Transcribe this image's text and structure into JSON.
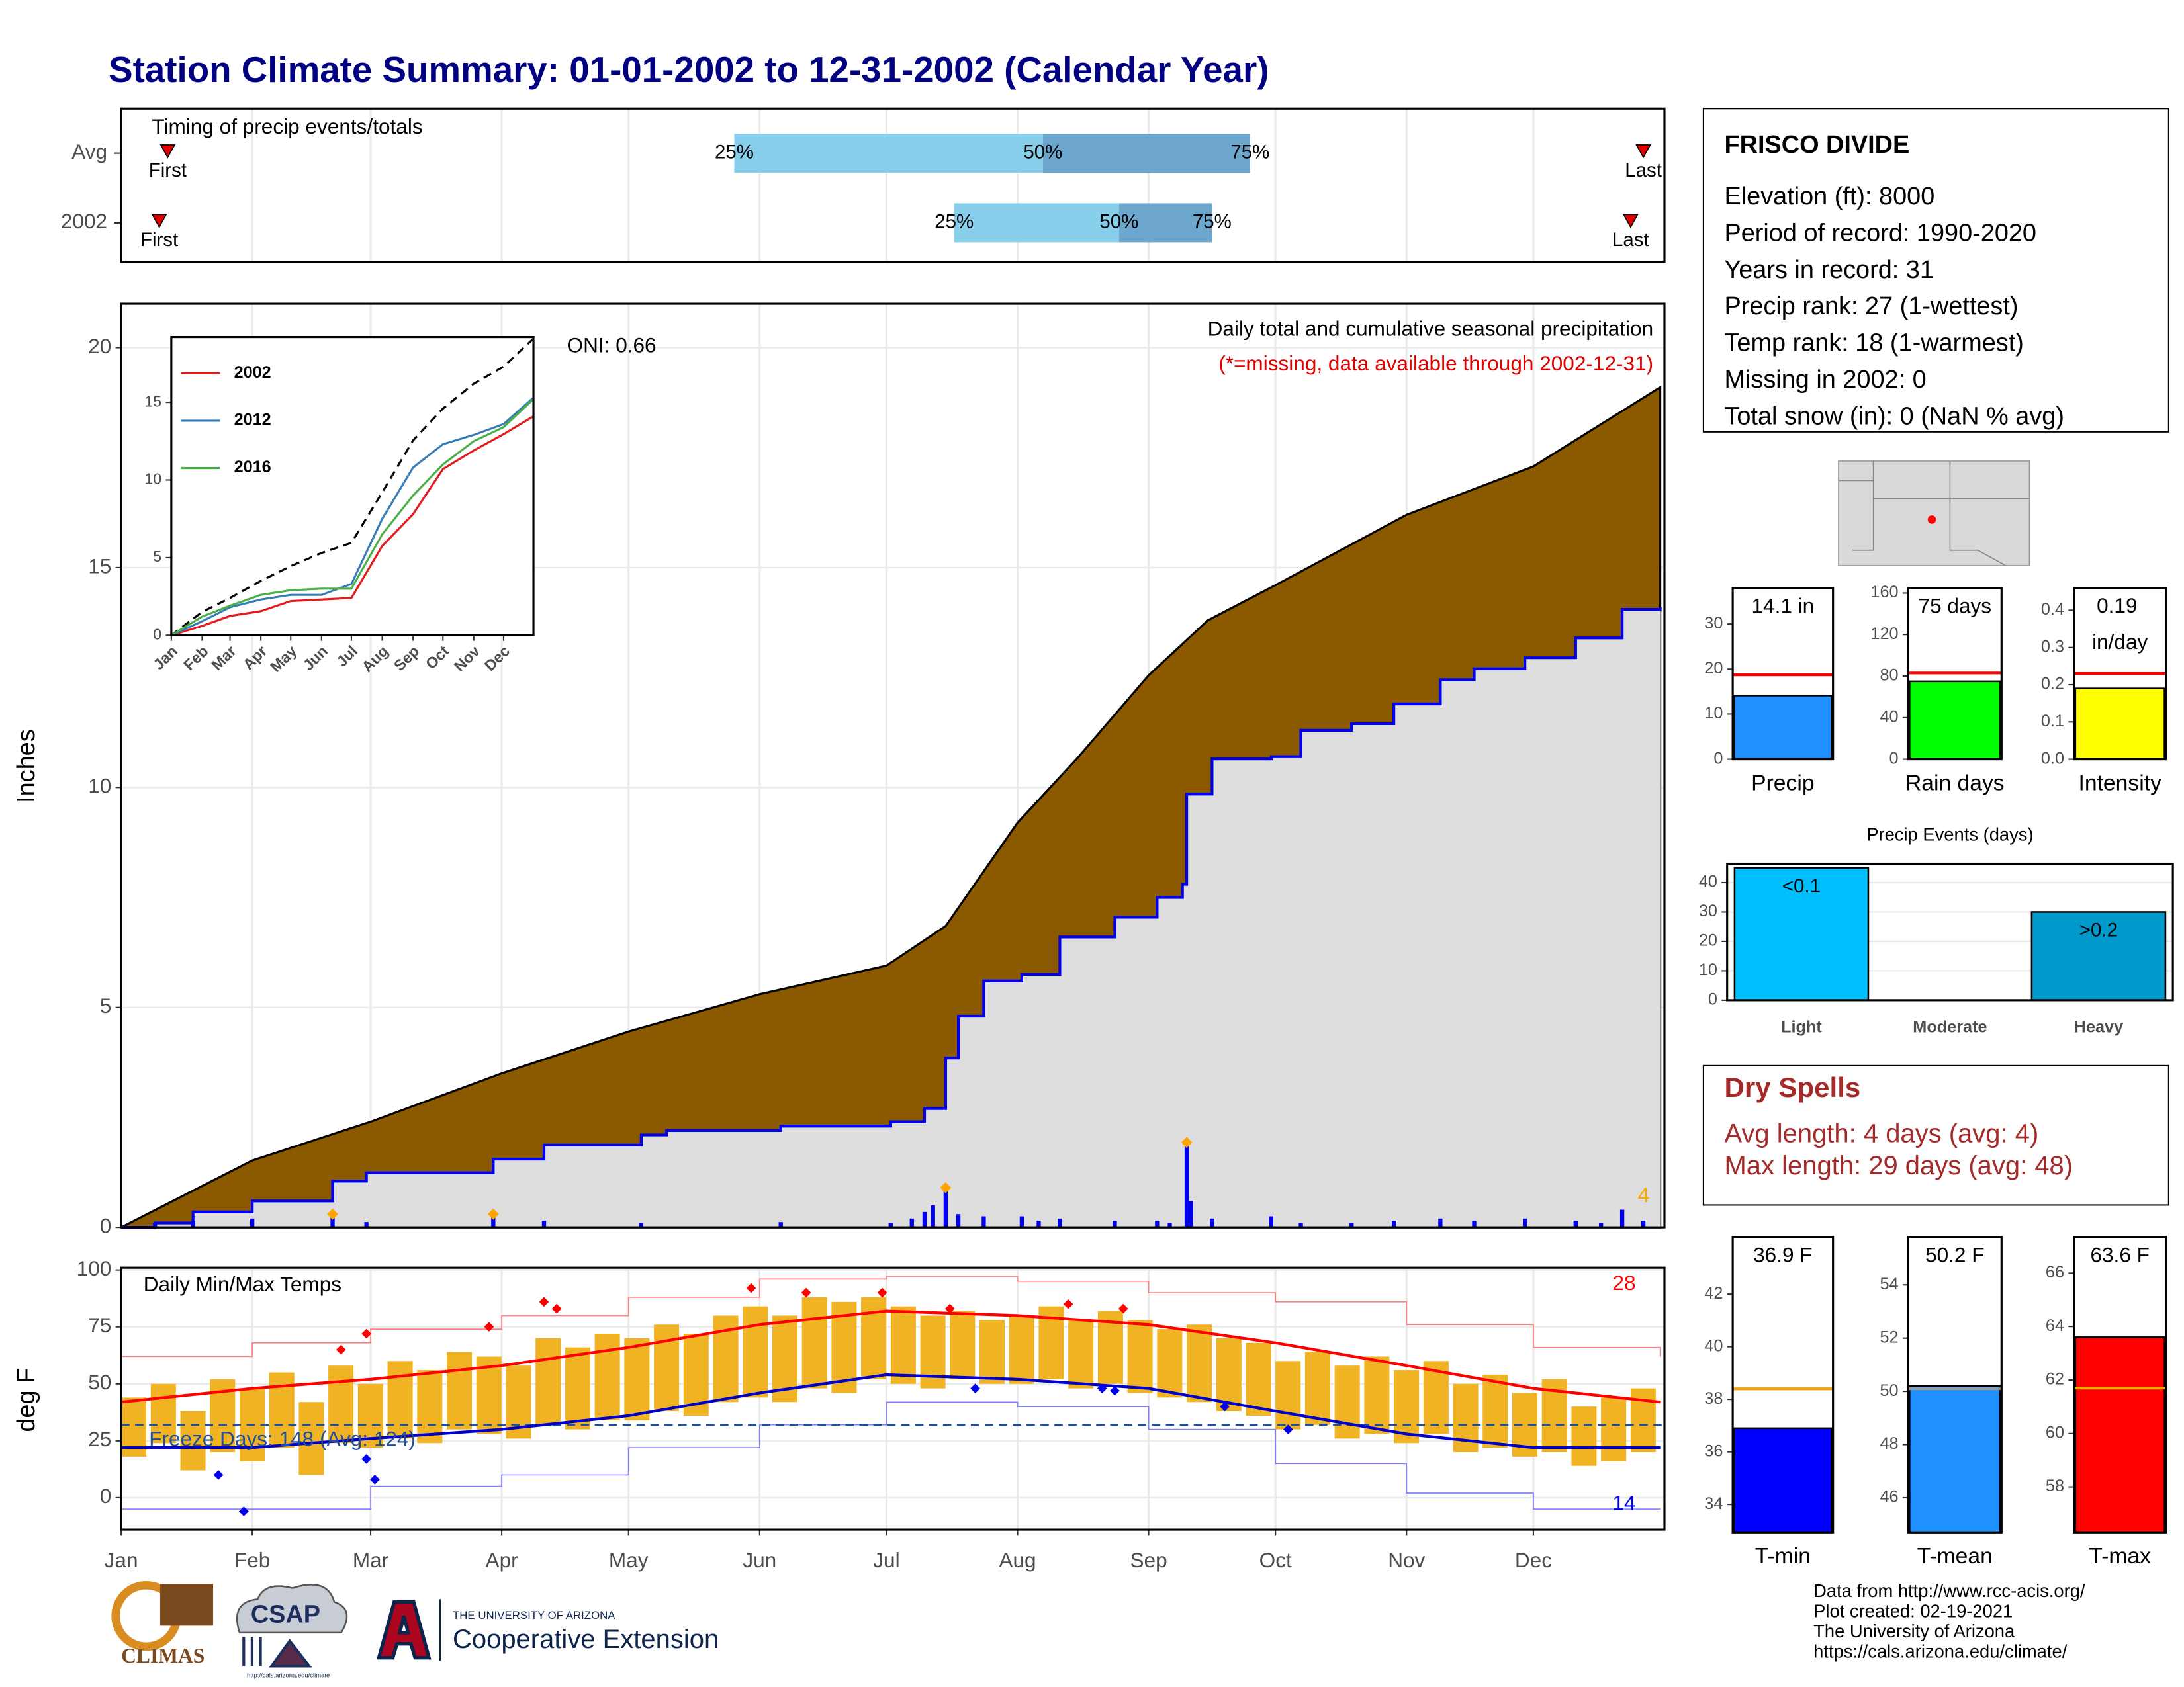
{
  "title": "Station Climate Summary: 01-01-2002 to 12-31-2002 (Calendar Year)",
  "station": {
    "name": "FRISCO DIVIDE",
    "lines": [
      "Elevation (ft): 8000",
      "Period of record: 1990-2020",
      "Years in record: 31",
      "Precip rank: 27 (1-wettest)",
      "Temp rank: 18 (1-warmest)",
      "Missing in 2002: 0",
      "Total snow (in): 0 (NaN % avg)"
    ]
  },
  "dry_spells": {
    "title": "Dry Spells",
    "lines": [
      "Avg length: 4 days (avg: 4)",
      "Max length: 29 days (avg: 48)"
    ]
  },
  "footer": {
    "climas": "CLIMAS",
    "csap": "CSAP",
    "csap_url": "http://cals.arizona.edu/climate",
    "ua": "THE UNIVERSITY OF ARIZONA",
    "extension": "Cooperative Extension",
    "credits": [
      "Data from http://www.rcc-acis.org/",
      "Plot created: 02-19-2021",
      "The University of Arizona",
      "https://cals.arizona.edu/climate/"
    ]
  },
  "chart_data": [
    {
      "type": "timeline",
      "title": "Timing of precip events/totals",
      "xlim": [
        1,
        366
      ],
      "categories": [
        "Avg",
        "2002"
      ],
      "first": [
        12,
        10
      ],
      "p25": [
        146,
        198
      ],
      "p50": [
        219,
        237
      ],
      "p75": [
        268,
        259
      ],
      "last": [
        361,
        358
      ],
      "first_label": "First",
      "last_label": "Last",
      "p25_label": "25%",
      "p50_label": "50%",
      "p75_label": "75%",
      "colors": [
        "#87CEEB",
        "#6CA6CD"
      ],
      "marker_color": "#E00000"
    },
    {
      "type": "area",
      "title": "Daily total and cumulative seasonal precipitation",
      "subtitle": "(*=missing, data available through 2002-12-31)",
      "annotation": "ONI: 0.66",
      "ylabel": "Inches",
      "xlim": [
        1,
        366
      ],
      "ylim": [
        0,
        21
      ],
      "yticks": [
        0,
        5,
        10,
        15,
        20
      ],
      "grid": true,
      "average": {
        "color": "#8B5A00",
        "x": [
          1,
          32,
          60,
          91,
          121,
          152,
          182,
          196,
          213,
          227,
          244,
          258,
          274,
          305,
          335,
          365
        ],
        "values": [
          0,
          1.52,
          2.4,
          3.5,
          4.45,
          5.3,
          5.95,
          6.85,
          9.2,
          10.65,
          12.55,
          13.8,
          14.6,
          16.2,
          17.3,
          19.1
        ]
      },
      "observed": {
        "color": "#0000EE",
        "fill": "#DEDEDE",
        "x": [
          1,
          9,
          18,
          32,
          51,
          59,
          89,
          101,
          124,
          130,
          157,
          183,
          191,
          196,
          199,
          205,
          214,
          223,
          236,
          246,
          252,
          253,
          259,
          273,
          280,
          292,
          302,
          313,
          321,
          333,
          345,
          356,
          365
        ],
        "values": [
          0,
          0.1,
          0.35,
          0.6,
          1.05,
          1.24,
          1.55,
          1.87,
          2.1,
          2.2,
          2.3,
          2.4,
          2.7,
          3.85,
          4.8,
          5.6,
          5.75,
          6.6,
          7.05,
          7.5,
          7.8,
          9.85,
          10.65,
          10.7,
          11.3,
          11.45,
          11.9,
          12.45,
          12.7,
          12.95,
          13.4,
          14.05,
          14.1
        ]
      },
      "daily": {
        "color": "#0000EE",
        "x": [
          9,
          18,
          32,
          51,
          59,
          89,
          101,
          124,
          157,
          183,
          188,
          191,
          193,
          196,
          199,
          205,
          214,
          218,
          223,
          236,
          246,
          249,
          253,
          254,
          259,
          273,
          280,
          292,
          302,
          313,
          321,
          333,
          345,
          351,
          356,
          361
        ],
        "values": [
          0.1,
          0.15,
          0.2,
          0.3,
          0.12,
          0.3,
          0.15,
          0.1,
          0.12,
          0.1,
          0.2,
          0.35,
          0.5,
          0.9,
          0.3,
          0.25,
          0.25,
          0.15,
          0.2,
          0.15,
          0.15,
          0.1,
          1.93,
          0.6,
          0.2,
          0.25,
          0.1,
          0.1,
          0.15,
          0.2,
          0.15,
          0.2,
          0.15,
          0.1,
          0.4,
          0.15
        ]
      },
      "extremes": {
        "color": "#FFA500",
        "x": [
          51,
          89,
          196,
          253
        ],
        "values": [
          0.3,
          0.3,
          0.9,
          1.93
        ]
      },
      "extreme_count": 4
    },
    {
      "type": "line",
      "xlim": [
        1,
        365
      ],
      "ylim": [
        0,
        19.2
      ],
      "yticks": [
        0,
        5,
        10,
        15
      ],
      "x": [
        1,
        32,
        60,
        91,
        121,
        152,
        182,
        213,
        244,
        274,
        305,
        335,
        365
      ],
      "xticks": [
        {
          "value": 1,
          "label": "Jan"
        },
        {
          "value": 32,
          "label": "Feb"
        },
        {
          "value": 60,
          "label": "Mar"
        },
        {
          "value": 91,
          "label": "Apr"
        },
        {
          "value": 121,
          "label": "May"
        },
        {
          "value": 152,
          "label": "Jun"
        },
        {
          "value": 182,
          "label": "Jul"
        },
        {
          "value": 213,
          "label": "Aug"
        },
        {
          "value": 244,
          "label": "Sep"
        },
        {
          "value": 274,
          "label": "Oct"
        },
        {
          "value": 305,
          "label": "Nov"
        },
        {
          "value": 335,
          "label": "Dec"
        }
      ],
      "average": {
        "color": "#000000",
        "values": [
          0,
          1.5,
          2.4,
          3.5,
          4.45,
          5.3,
          5.95,
          9.2,
          12.55,
          14.6,
          16.2,
          17.3,
          19.1
        ]
      },
      "series": [
        {
          "name": "2002",
          "color": "#E41A1C",
          "values": [
            0,
            0.6,
            1.24,
            1.55,
            2.2,
            2.3,
            2.4,
            5.75,
            7.8,
            10.7,
            11.9,
            12.95,
            14.1
          ]
        },
        {
          "name": "2012",
          "color": "#377EB8",
          "values": [
            0,
            0.9,
            1.8,
            2.3,
            2.6,
            2.6,
            3.3,
            7.5,
            10.8,
            12.3,
            12.9,
            13.6,
            15.3
          ]
        },
        {
          "name": "2016",
          "color": "#4DAF4A",
          "values": [
            0,
            1.2,
            1.9,
            2.6,
            2.9,
            3.0,
            3.0,
            6.5,
            9.0,
            11.0,
            12.5,
            13.4,
            15.2
          ]
        }
      ]
    },
    {
      "type": "range",
      "title": "Daily Min/Max Temps",
      "ylabel": "deg F",
      "xlim": [
        1,
        366
      ],
      "ylim": [
        -14,
        101
      ],
      "yticks": [
        0,
        25,
        50,
        75,
        100
      ],
      "grid": true,
      "xticks": [
        {
          "value": 1,
          "label": "Jan"
        },
        {
          "value": 32,
          "label": "Feb"
        },
        {
          "value": 60,
          "label": "Mar"
        },
        {
          "value": 91,
          "label": "Apr"
        },
        {
          "value": 121,
          "label": "May"
        },
        {
          "value": 152,
          "label": "Jun"
        },
        {
          "value": 182,
          "label": "Jul"
        },
        {
          "value": 213,
          "label": "Aug"
        },
        {
          "value": 244,
          "label": "Sep"
        },
        {
          "value": 274,
          "label": "Oct"
        },
        {
          "value": 305,
          "label": "Nov"
        },
        {
          "value": 335,
          "label": "Dec"
        }
      ],
      "daily": {
        "color": "#F0B323",
        "x": [
          1,
          8,
          15,
          22,
          29,
          36,
          43,
          50,
          57,
          64,
          71,
          78,
          85,
          92,
          99,
          106,
          113,
          120,
          127,
          134,
          141,
          148,
          155,
          162,
          169,
          176,
          183,
          190,
          197,
          204,
          211,
          218,
          225,
          232,
          239,
          246,
          253,
          260,
          267,
          274,
          281,
          288,
          295,
          302,
          309,
          316,
          323,
          330,
          337,
          344,
          351,
          358
        ],
        "tmax": [
          44,
          50,
          38,
          52,
          48,
          55,
          42,
          58,
          50,
          60,
          56,
          64,
          62,
          58,
          70,
          66,
          72,
          70,
          76,
          72,
          80,
          84,
          80,
          88,
          86,
          88,
          84,
          80,
          82,
          78,
          80,
          84,
          78,
          82,
          78,
          74,
          76,
          70,
          68,
          60,
          64,
          58,
          62,
          56,
          60,
          50,
          54,
          46,
          52,
          40,
          44,
          48
        ],
        "tmin": [
          18,
          24,
          12,
          20,
          16,
          22,
          10,
          24,
          22,
          26,
          24,
          30,
          28,
          26,
          32,
          30,
          34,
          34,
          38,
          36,
          42,
          44,
          42,
          48,
          46,
          52,
          50,
          48,
          52,
          50,
          50,
          52,
          48,
          50,
          46,
          44,
          42,
          38,
          36,
          30,
          32,
          26,
          28,
          24,
          28,
          20,
          22,
          18,
          20,
          14,
          16,
          20
        ]
      },
      "normal_x": [
        1,
        32,
        60,
        91,
        121,
        152,
        182,
        213,
        244,
        274,
        305,
        335,
        365
      ],
      "avg_max": {
        "color": "#FF0000",
        "values": [
          42,
          48,
          52,
          58,
          66,
          76,
          82,
          80,
          76,
          68,
          58,
          48,
          42
        ]
      },
      "avg_min": {
        "color": "#0000CD",
        "values": [
          22,
          22,
          26,
          30,
          36,
          46,
          54,
          52,
          48,
          38,
          28,
          22,
          22
        ]
      },
      "record_max": {
        "color": "#FF8080",
        "values": [
          62,
          68,
          74,
          80,
          88,
          96,
          97,
          95,
          90,
          86,
          76,
          66,
          62
        ]
      },
      "record_min": {
        "color": "#8080FF",
        "values": [
          -5,
          -5,
          5,
          10,
          22,
          32,
          42,
          40,
          30,
          15,
          2,
          -5,
          -5
        ]
      },
      "record_highs": {
        "color": "#FF0000",
        "x": [
          53,
          59,
          88,
          101,
          104,
          150,
          163,
          181,
          197,
          225,
          238
        ],
        "values": [
          65,
          72,
          75,
          86,
          83,
          92,
          90,
          90,
          83,
          85,
          83
        ]
      },
      "record_lows": {
        "color": "#0000EE",
        "x": [
          24,
          30,
          59,
          61,
          203,
          233,
          236,
          262,
          277
        ],
        "values": [
          10,
          -6,
          17,
          8,
          48,
          48,
          47,
          40,
          30
        ]
      },
      "record_high_count": 28,
      "record_low_count": 14,
      "freeze_line": 32,
      "freeze_text": "Freeze Days: 148 (Avg: 124)"
    },
    {
      "type": "bar",
      "xlabel": "Precip",
      "values": [
        14.1
      ],
      "value_labels": [
        "14.1 in"
      ],
      "average": 18.7,
      "average_color": "#FF0000",
      "color": "#1E90FF",
      "ylim": [
        0,
        38
      ],
      "yticks": [
        0,
        10,
        20,
        30
      ]
    },
    {
      "type": "bar",
      "xlabel": "Rain days",
      "values": [
        75
      ],
      "value_labels": [
        "75 days"
      ],
      "average": 83,
      "average_color": "#FF0000",
      "color": "#00FF00",
      "ylim": [
        0,
        165
      ],
      "yticks": [
        0,
        40,
        80,
        120,
        160
      ]
    },
    {
      "type": "bar",
      "xlabel": "Intensity",
      "values": [
        0.19
      ],
      "value_labels": [
        "0.19 in/day"
      ],
      "average": 0.23,
      "average_color": "#FF0000",
      "color": "#FFFF00",
      "ylim": [
        0,
        0.46
      ],
      "yticks": [
        {
          "value": 0,
          "label": "0.0"
        },
        0.1,
        0.2,
        0.3,
        0.4
      ]
    },
    {
      "type": "bar",
      "title": "Precip Events (days)",
      "categories": [
        "Light",
        "Moderate",
        "Heavy"
      ],
      "values": [
        45,
        0,
        30
      ],
      "value_labels": [
        "<0.1",
        null,
        ">0.2"
      ],
      "colors": [
        "#00BFFF",
        "#1E90FF",
        "#0099CC"
      ],
      "ylim": [
        0,
        46.4
      ],
      "yticks": [
        0,
        10,
        20,
        30,
        40
      ],
      "grid": true
    },
    {
      "type": "bar",
      "xlabel": "T-min",
      "values": [
        36.9
      ],
      "value_labels": [
        "36.9 F"
      ],
      "average": 38.4,
      "average_color": "#F4A300",
      "color": "#0000FF",
      "ylim": [
        32.94,
        44.17
      ],
      "yticks": [
        34,
        36,
        38,
        40,
        42
      ]
    },
    {
      "type": "bar",
      "xlabel": "T-mean",
      "values": [
        50.2
      ],
      "value_labels": [
        "50.2 F"
      ],
      "average": 50.1,
      "average_color": "#999999",
      "color": "#1E90FF",
      "ylim": [
        44.7,
        55.8
      ],
      "yticks": [
        46,
        48,
        50,
        52,
        54
      ]
    },
    {
      "type": "bar",
      "xlabel": "T-max",
      "values": [
        63.6
      ],
      "value_labels": [
        "63.6 F"
      ],
      "average": 61.7,
      "average_color": "#F4A300",
      "color": "#FF0000",
      "ylim": [
        56.3,
        67.35
      ],
      "yticks": [
        58,
        60,
        62,
        64,
        66
      ]
    }
  ]
}
